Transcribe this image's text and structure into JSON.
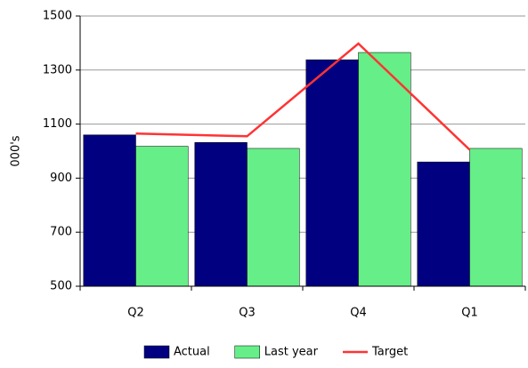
{
  "chart_data": {
    "type": "bar",
    "y_label": "000's",
    "categories": [
      "Q2",
      "Q3",
      "Q4",
      "Q1"
    ],
    "series": [
      {
        "name": "Actual",
        "color": "#000080",
        "values": [
          1060,
          1032,
          1338,
          960
        ]
      },
      {
        "name": "Last year",
        "color": "#66ee88",
        "values": [
          1018,
          1010,
          1365,
          1010
        ]
      },
      {
        "name": "Target",
        "color": "#ff3333",
        "type": "line",
        "values": [
          1065,
          1055,
          1398,
          1005
        ]
      }
    ],
    "ylim": [
      500,
      1500
    ],
    "yticks": [
      500,
      700,
      900,
      1100,
      1300,
      1500
    ],
    "grid": true,
    "legend": "bottom"
  }
}
